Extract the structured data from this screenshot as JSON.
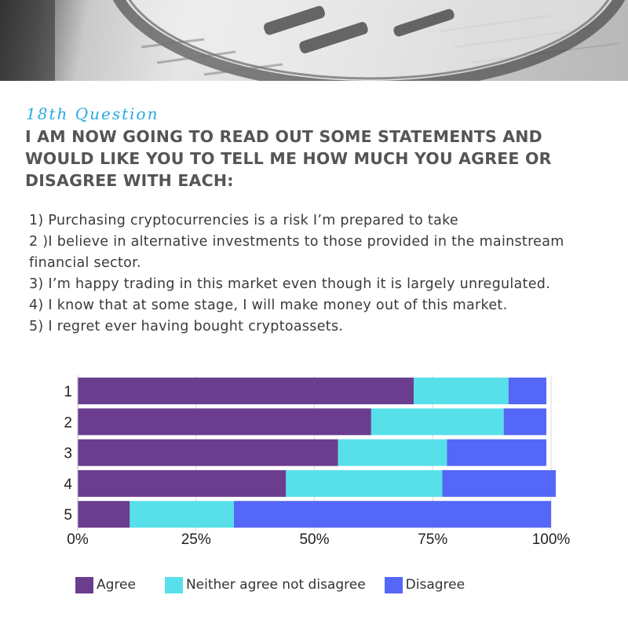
{
  "header": {
    "question_number": "18th Question",
    "question_title": "I AM NOW GOING TO READ OUT SOME STATEMENTS AND WOULD LIKE YOU TO TELL ME HOW MUCH YOU AGREE OR DISAGREE WITH EACH:"
  },
  "statements": [
    "1) Purchasing cryptocurrencies is a risk I’m prepared to take",
    "2 )I believe in alternative investments to those provided in the mainstream financial sector.",
    "3) I’m happy trading in this market even though it is largely unregulated.",
    "4) I know that at some stage, I will make money out of this market.",
    "5) I regret ever having bought cryptoassets."
  ],
  "chart_data": {
    "type": "bar",
    "orientation": "horizontal",
    "stacked": true,
    "categories": [
      "1",
      "2",
      "3",
      "4",
      "5"
    ],
    "series": [
      {
        "name": "Agree",
        "color": "#6a3d8f",
        "values": [
          71,
          62,
          55,
          44,
          11
        ]
      },
      {
        "name": "Neither agree not disagree",
        "color": "#58e0ea",
        "values": [
          20,
          28,
          23,
          33,
          22
        ]
      },
      {
        "name": "Disagree",
        "color": "#5467f6",
        "values": [
          8,
          9,
          21,
          24,
          67
        ]
      }
    ],
    "x_ticks": [
      "0%",
      "25%",
      "50%",
      "75%",
      "100%"
    ],
    "xlim": [
      0,
      100
    ],
    "grid": true,
    "legend_position": "bottom"
  }
}
